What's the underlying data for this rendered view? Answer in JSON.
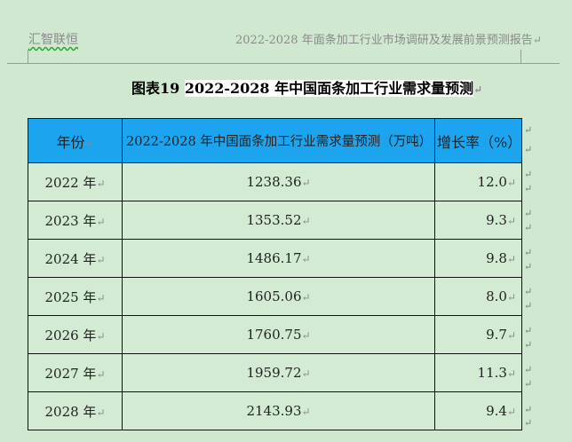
{
  "header": {
    "left_text": "汇智联恒",
    "right_text": "2022-2028 年面条加工行业市场调研及发展前景预测报告",
    "para_mark": "↵"
  },
  "caption": {
    "label": "图表19 ",
    "title": "2022-2028 年中国面条加工行业需求量预测",
    "para_mark": "↵"
  },
  "table": {
    "headers": {
      "year": "年份",
      "value": "2022-2028 年中国面条加工行业需求量预测（万吨）",
      "rate": "增长率（%）"
    },
    "rows": [
      {
        "year": "2022 年",
        "value": "1238.36",
        "rate": "12.0"
      },
      {
        "year": "2023 年",
        "value": "1353.52",
        "rate": "9.3"
      },
      {
        "year": "2024 年",
        "value": "1486.17",
        "rate": "9.8"
      },
      {
        "year": "2025 年",
        "value": "1605.06",
        "rate": "8.0"
      },
      {
        "year": "2026 年",
        "value": "1760.75",
        "rate": "9.7"
      },
      {
        "year": "2027 年",
        "value": "1959.72",
        "rate": "11.3"
      },
      {
        "year": "2028 年",
        "value": "2143.93",
        "rate": "9.4"
      }
    ],
    "cell_mark": "↵",
    "row_end_mark": "↵"
  },
  "colors": {
    "page_background": "#cfe8cf",
    "header_fill": "#1ca4ee",
    "text": "#222222"
  }
}
